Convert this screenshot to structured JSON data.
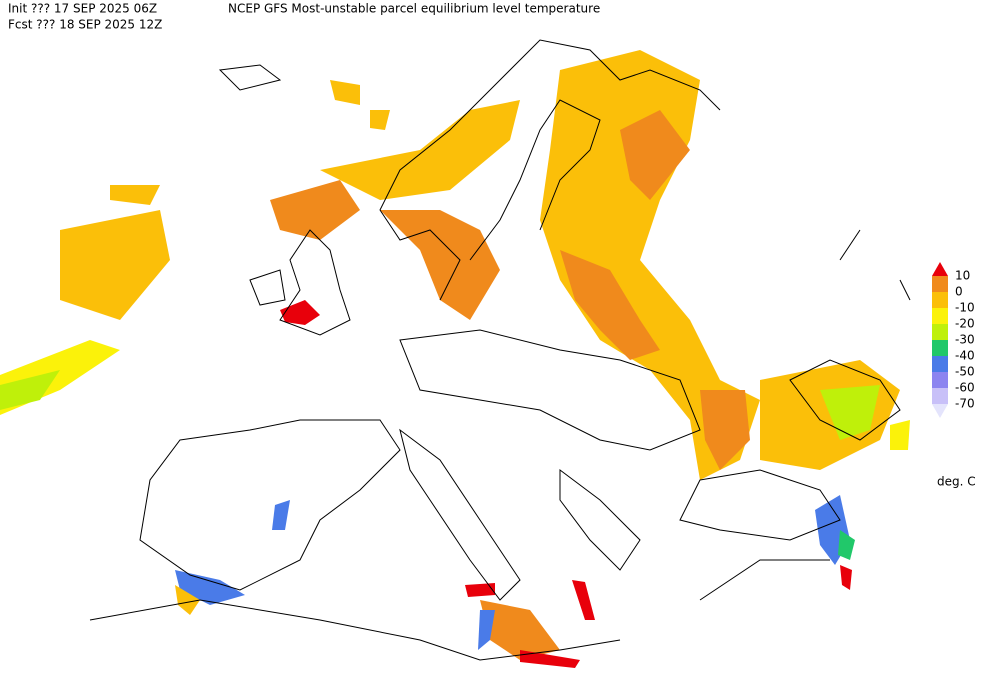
{
  "header": {
    "init": "Init  ??? 17 SEP 2025 06Z",
    "title": "NCEP GFS Most-unstable parcel equilibrium level temperature",
    "forecast": "Fcst ??? 18 SEP 2025 12Z"
  },
  "legend": {
    "levels": [
      10,
      0,
      -10,
      -20,
      -30,
      -40,
      -50,
      -60,
      -70
    ],
    "colors": [
      "#e8000b",
      "#f08a1c",
      "#fbbf09",
      "#fbf20a",
      "#bff00a",
      "#21c86a",
      "#4a7be8",
      "#8c84f0",
      "#c8c0f8",
      "#e4e4fc"
    ],
    "units": "deg. C"
  }
}
